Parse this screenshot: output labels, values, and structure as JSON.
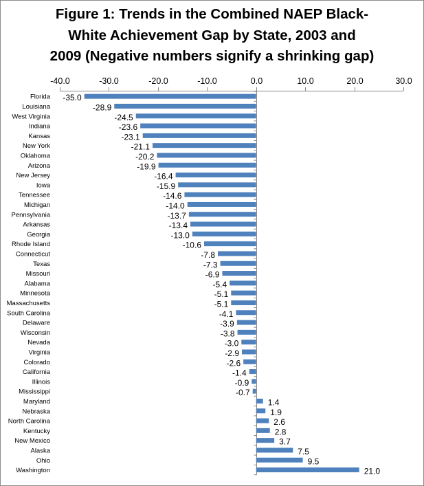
{
  "chart_data": {
    "type": "bar",
    "orientation": "horizontal",
    "title_lines": [
      "Figure 1: Trends in the Combined NAEP Black-",
      "White Achievement Gap by State, 2003 and",
      "2009 (Negative numbers signify a shrinking gap)"
    ],
    "xlabel": "",
    "ylabel": "",
    "xlim": [
      -40,
      30
    ],
    "x_ticks": [
      "-40.0",
      "-30.0",
      "-20.0",
      "-10.0",
      "0.0",
      "10.0",
      "20.0",
      "30.0"
    ],
    "x_tick_values": [
      -40,
      -30,
      -20,
      -10,
      0,
      10,
      20,
      30
    ],
    "grid": false,
    "legend": "none",
    "bar_color": "#4F81BD",
    "categories": [
      "Florida",
      "Louisiana",
      "West Virginia",
      "Indiana",
      "Kansas",
      "New York",
      "Oklahoma",
      "Arizona",
      "New Jersey",
      "Iowa",
      "Tennessee",
      "Michigan",
      "Pennsylvania",
      "Arkansas",
      "Georgia",
      "Rhode Island",
      "Connecticut",
      "Texas",
      "Missouri",
      "Alabama",
      "Minnesota",
      "Massachusetts",
      "South Carolina",
      "Delaware",
      "Wisconsin",
      "Nevada",
      "Virginia",
      "Colorado",
      "California",
      "Illinois",
      "Mississippi",
      "Maryland",
      "Nebraska",
      "North Carolina",
      "Kentucky",
      "New Mexico",
      "Alaska",
      "Ohio",
      "Washington"
    ],
    "values": [
      -35.0,
      -28.9,
      -24.5,
      -23.6,
      -23.1,
      -21.1,
      -20.2,
      -19.9,
      -16.4,
      -15.9,
      -14.6,
      -14.0,
      -13.7,
      -13.4,
      -13.0,
      -10.6,
      -7.8,
      -7.3,
      -6.9,
      -5.4,
      -5.1,
      -5.1,
      -4.1,
      -3.9,
      -3.8,
      -3.0,
      -2.9,
      -2.6,
      -1.4,
      -0.9,
      -0.7,
      1.4,
      1.9,
      2.6,
      2.8,
      3.7,
      7.5,
      9.5,
      21.0
    ],
    "value_labels": [
      "-35.0",
      "-28.9",
      "-24.5",
      "-23.6",
      "-23.1",
      "-21.1",
      "-20.2",
      "-19.9",
      "-16.4",
      "-15.9",
      "-14.6",
      "-14.0",
      "-13.7",
      "-13.4",
      "-13.0",
      "-10.6",
      "-7.8",
      "-7.3",
      "-6.9",
      "-5.4",
      "-5.1",
      "-5.1",
      "-4.1",
      "-3.9",
      "-3.8",
      "-3.0",
      "-2.9",
      "-2.6",
      "-1.4",
      "-0.9",
      "-0.7",
      "1.4",
      "1.9",
      "2.6",
      "2.8",
      "3.7",
      "7.5",
      "9.5",
      "21.0"
    ]
  }
}
